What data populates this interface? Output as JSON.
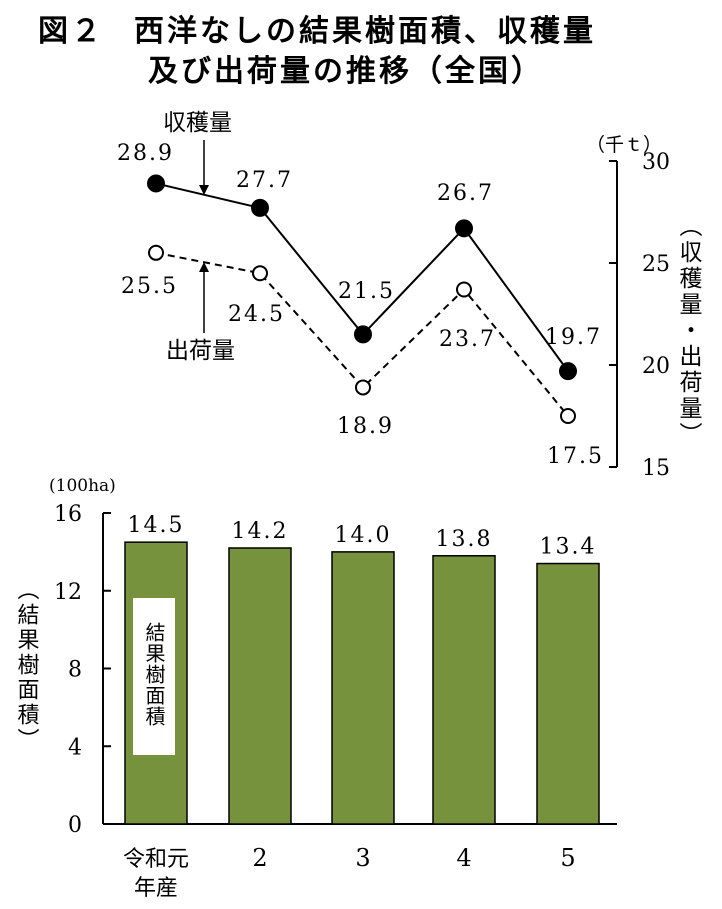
{
  "title": {
    "line1_number": "図２",
    "line1_text": "西洋なしの結果樹面積、収穫量",
    "line2_text": "及び出荷量の推移（全国）"
  },
  "chart_data": [
    {
      "type": "line",
      "categories": [
        "令和元年産",
        "2",
        "3",
        "4",
        "5"
      ],
      "series": [
        {
          "name": "収穫量",
          "values": [
            28.9,
            27.7,
            21.5,
            26.7,
            19.7
          ],
          "style": "solid",
          "marker": "filled-circle"
        },
        {
          "name": "出荷量",
          "values": [
            25.5,
            24.5,
            18.9,
            23.7,
            17.5
          ],
          "style": "dashed",
          "marker": "open-circle"
        }
      ],
      "value_labels": {
        "harvest": [
          "28.9",
          "27.7",
          "21.5",
          "26.7",
          "19.7"
        ],
        "shipment": [
          "25.5",
          "24.5",
          "18.9",
          "23.7",
          "17.5"
        ]
      },
      "ylim": [
        15,
        30
      ],
      "yticks": [
        "30",
        "25",
        "20",
        "15"
      ],
      "y_unit": "（千ｔ）",
      "ylabel": "（収穫量・出荷量）",
      "y_axis_side": "right",
      "annotations": {
        "harvest": "収穫量",
        "shipment": "出荷量"
      },
      "grid": false
    },
    {
      "type": "bar",
      "categories": [
        "令和元年産",
        "2",
        "3",
        "4",
        "5"
      ],
      "category_labels": {
        "first_line1": "令和元",
        "first_line2": "年産",
        "rest": [
          "2",
          "3",
          "4",
          "5"
        ]
      },
      "values": [
        14.5,
        14.2,
        14.0,
        13.8,
        13.4
      ],
      "value_labels": [
        "14.5",
        "14.2",
        "14.0",
        "13.8",
        "13.4"
      ],
      "ylim": [
        0,
        16
      ],
      "yticks": [
        "16",
        "12",
        "8",
        "4",
        "0"
      ],
      "y_unit": "(100ha)",
      "ylabel": "（結果樹面積）",
      "series_label": "結果樹面積",
      "bar_color": "#76923c",
      "grid": false
    }
  ]
}
